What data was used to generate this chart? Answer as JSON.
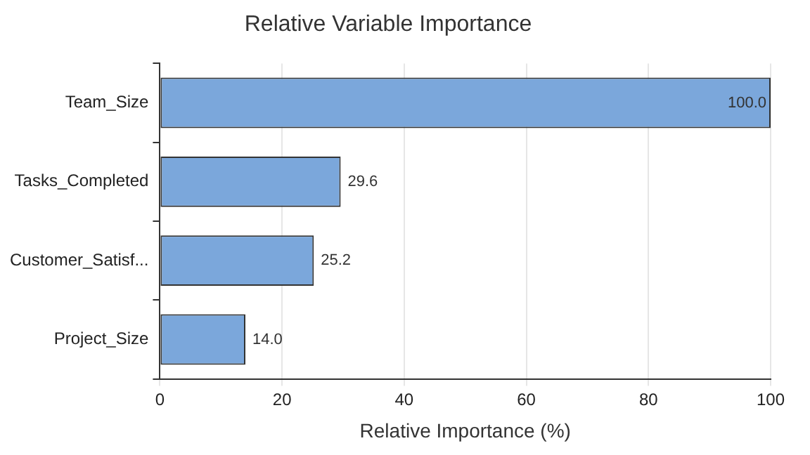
{
  "chart_data": {
    "type": "bar",
    "orientation": "horizontal",
    "title": "Relative Variable Importance",
    "xlabel": "Relative Importance (%)",
    "categories": [
      "Team_Size",
      "Tasks_Completed",
      "Customer_Satisf...",
      "Project_Size"
    ],
    "values": [
      100.0,
      29.6,
      25.2,
      14.0
    ],
    "value_labels": [
      "100.0",
      "29.6",
      "25.2",
      "14.0"
    ],
    "color": "#7ba7db",
    "xlim": [
      0,
      100
    ],
    "xticks": [
      0,
      20,
      40,
      60,
      80,
      100
    ],
    "grid": "x",
    "legend": false
  }
}
